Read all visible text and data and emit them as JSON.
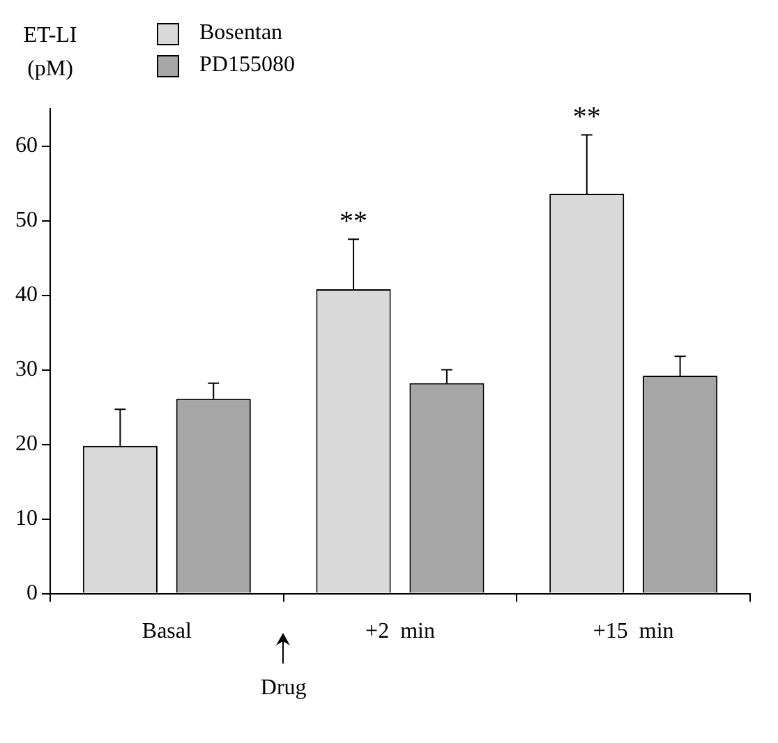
{
  "chart_data": {
    "type": "bar",
    "ylabel": "ET-LI (pM)",
    "categories": [
      "Basal",
      "+2  min",
      "+15  min"
    ],
    "series": [
      {
        "name": "Bosentan",
        "color": "#d9d9d9",
        "values": [
          19.8,
          40.8,
          53.6
        ],
        "errors": [
          [
            19.8,
            24.7
          ],
          [
            40.8,
            47.5
          ],
          [
            53.6,
            61.5
          ]
        ]
      },
      {
        "name": "PD155080",
        "color": "#a6a6a6",
        "values": [
          26.1,
          28.2,
          29.2
        ],
        "errors": [
          [
            26.1,
            28.2
          ],
          [
            28.2,
            30.0
          ],
          [
            29.2,
            31.8
          ]
        ]
      }
    ],
    "ylim": [
      0,
      65
    ],
    "yticks": [
      0,
      10,
      20,
      30,
      40,
      50,
      60
    ],
    "grid": false,
    "legend": "top left",
    "annotations": [
      "**",
      "**",
      "Drug"
    ]
  }
}
